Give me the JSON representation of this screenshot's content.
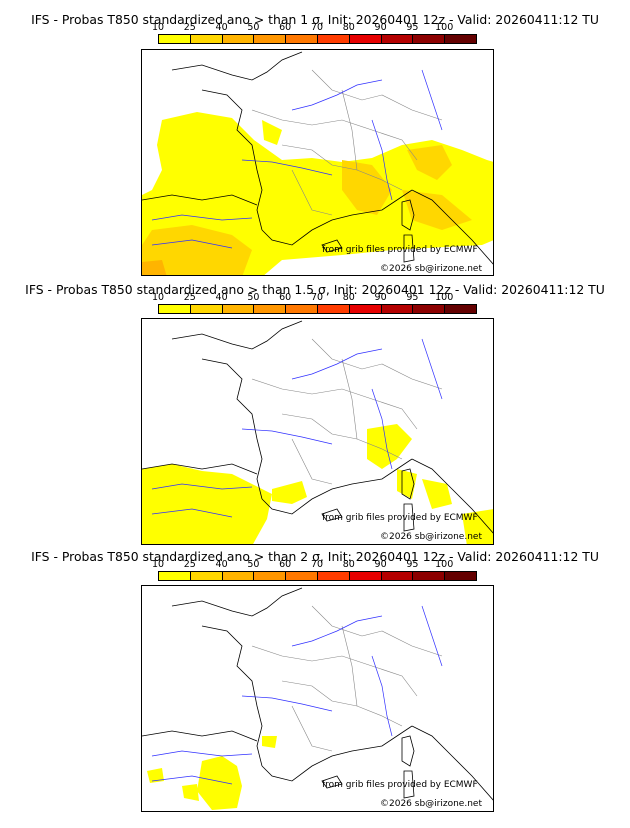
{
  "colorbar": {
    "ticks": [
      "10",
      "25",
      "40",
      "50",
      "60",
      "70",
      "80",
      "90",
      "95",
      "100"
    ],
    "colors": [
      "#ffff00",
      "#ffd700",
      "#ffb400",
      "#ff9600",
      "#ff7800",
      "#ff3c00",
      "#e60000",
      "#b40000",
      "#8c0000",
      "#640000"
    ]
  },
  "panels": [
    {
      "title": "IFS - Probas T850  standardized ano > than 1 σ, Init: 20260401 12z - Valid: 20260411:12 TU",
      "credit1": "from grib files provided by ECMWF",
      "credit2": "©2026 sb@irizone.net"
    },
    {
      "title": "IFS - Probas T850  standardized ano > than 1.5 σ, Init: 20260401 12z - Valid: 20260411:12 TU",
      "credit1": "from grib files provided by ECMWF",
      "credit2": "©2026 sb@irizone.net"
    },
    {
      "title": "IFS - Probas T850  standardized ano > than 2 σ, Init: 20260401 12z - Valid: 20260411:12 TU",
      "credit1": "from grib files provided by ECMWF",
      "credit2": "©2026 sb@irizone.net"
    }
  ]
}
